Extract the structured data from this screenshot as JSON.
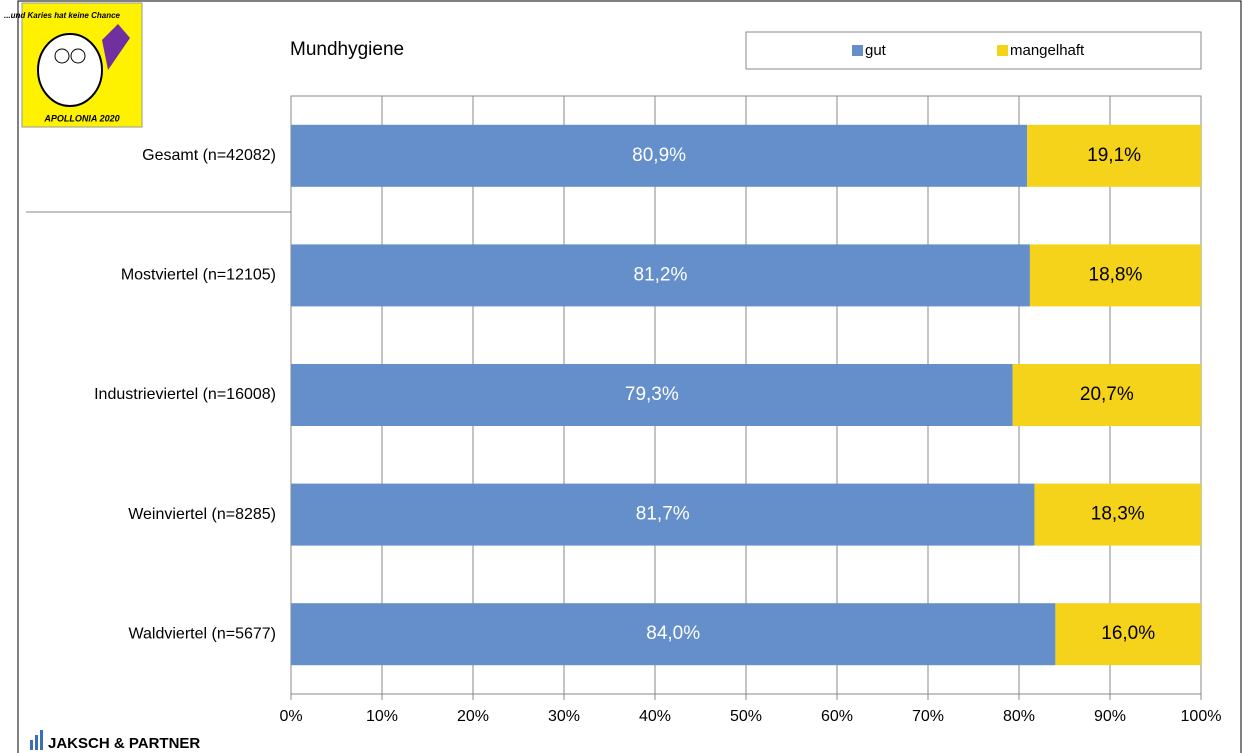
{
  "chart_data": {
    "type": "stacked_bar_horizontal",
    "title": "Mundhygiene",
    "categories": [
      "Gesamt (n=42082)",
      "Mostviertel (n=12105)",
      "Industrieviertel (n=16008)",
      "Weinviertel (n=8285)",
      "Waldviertel (n=5677)"
    ],
    "series": [
      {
        "name": "gut",
        "color": "#648fcb",
        "values": [
          80.9,
          81.2,
          79.3,
          81.7,
          84.0
        ],
        "value_labels": [
          "80,9%",
          "81,2%",
          "79,3%",
          "81,7%",
          "84,0%"
        ]
      },
      {
        "name": "mangelhaft",
        "color": "#f5d31a",
        "values": [
          19.1,
          18.8,
          20.7,
          18.3,
          16.0
        ],
        "value_labels": [
          "19,1%",
          "18,8%",
          "20,7%",
          "18,3%",
          "16,0%"
        ]
      }
    ],
    "xlim": [
      0,
      100
    ],
    "xticks": [
      {
        "value": 0,
        "label": "0%"
      },
      {
        "value": 10,
        "label": "10%"
      },
      {
        "value": 20,
        "label": "20%"
      },
      {
        "value": 30,
        "label": "30%"
      },
      {
        "value": 40,
        "label": "40%"
      },
      {
        "value": 50,
        "label": "50%"
      },
      {
        "value": 60,
        "label": "60%"
      },
      {
        "value": 70,
        "label": "70%"
      },
      {
        "value": 80,
        "label": "80%"
      },
      {
        "value": 90,
        "label": "90%"
      },
      {
        "value": 100,
        "label": "100%"
      }
    ],
    "grid": true,
    "legend": "top-right",
    "annotations": [
      "...und Karies hat keine Chance",
      "APOLLONIA 2020",
      "JAKSCH & PARTNER"
    ]
  }
}
